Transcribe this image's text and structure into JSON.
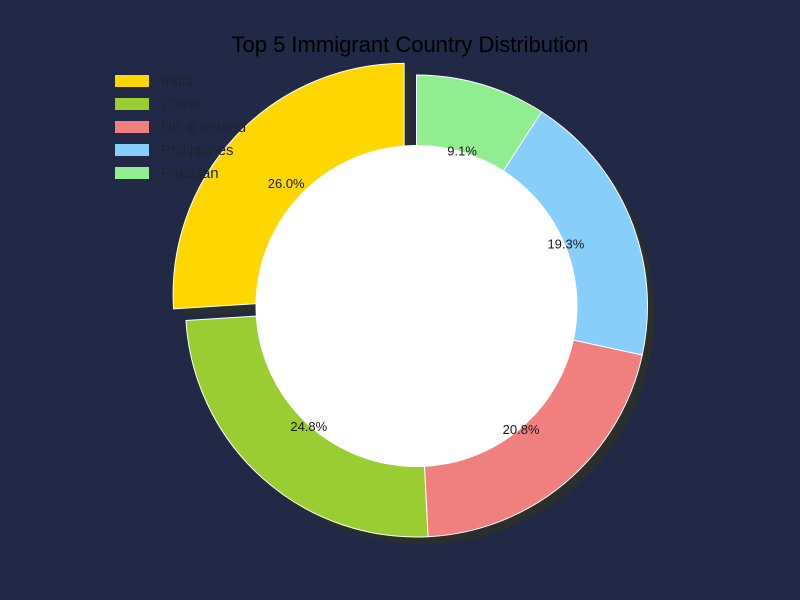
{
  "chart_data": {
    "type": "pie",
    "title": "Top 5 Immigrant Country Distribution",
    "categories": [
      "India",
      "China",
      "UK & Ireland",
      "Philippines",
      "Pakistan"
    ],
    "values": [
      26.0,
      24.8,
      20.8,
      19.3,
      9.1
    ],
    "labels": [
      "26.0%",
      "24.8%",
      "20.8%",
      "19.3%",
      "9.1%"
    ],
    "colors": [
      "#FFD700",
      "#9ACD32",
      "#F08080",
      "#87CEFA",
      "#90EE90"
    ],
    "exploded": [
      "India"
    ],
    "donut": true,
    "shadow": true,
    "legend": "top-left"
  },
  "background_color": "#212946"
}
